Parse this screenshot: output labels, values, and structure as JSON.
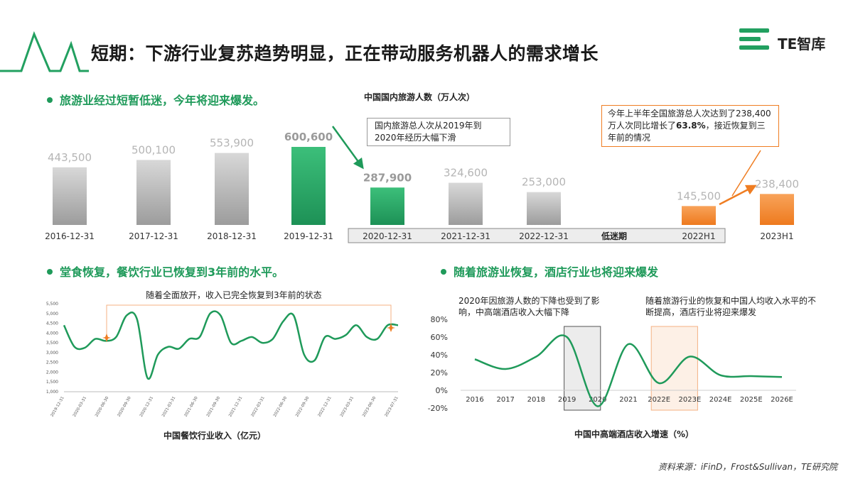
{
  "header": {
    "title": "短期：下游行业复苏趋势明显，正在带动服务机器人的需求增长",
    "logo_text": "TE智库"
  },
  "sections": {
    "tourism": {
      "bullet": "旅游业经过短暂低迷，今年将迎来爆发。"
    },
    "catering": {
      "bullet": "堂食恢复，餐饮行业已恢复到3年前的水平。"
    },
    "hotel": {
      "bullet": "随着旅游业恢复，酒店行业也将迎来爆发"
    }
  },
  "notes": {
    "decline": "国内旅游总人次从2019年到2020年经历大幅下滑",
    "growth_pre": "今年上半年全国旅游总人次达到了238,400万人次同比增长了",
    "growth_pct": "63.8%",
    "growth_post": "，接近恢复到三年前的情况",
    "low_period": "低迷期",
    "catering_annotation": "随着全面放开，收入已完全恢复到3年前的状态",
    "hotel_ann1": "2020年因旅游人数的下降也受到了影响，中高端酒店收入大幅下降",
    "hotel_ann2": "随着旅游行业的恢复和中国人均收入水平的不断提高，酒店行业将迎来爆发"
  },
  "source": "资料来源：iFinD，Frost&Sullivan，TE研究院",
  "colors": {
    "green": "#1f9a5a",
    "orange": "#ef7d22",
    "gray": "#b5b5b5"
  },
  "chart_data": [
    {
      "type": "bar",
      "title": "中国国内旅游人数（万人次）",
      "categories": [
        "2016-12-31",
        "2017-12-31",
        "2018-12-31",
        "2019-12-31",
        "2020-12-31",
        "2021-12-31",
        "2022-12-31",
        "2022H1",
        "2023H1"
      ],
      "values": [
        443500,
        500100,
        553900,
        600600,
        287900,
        324600,
        253000,
        145500,
        238400
      ],
      "value_labels": [
        "443,500",
        "500,100",
        "553,900",
        "600,600",
        "287,900",
        "324,600",
        "253,000",
        "145,500",
        "238,400"
      ],
      "bar_colors": [
        "gray",
        "gray",
        "gray",
        "green",
        "green",
        "gray",
        "gray",
        "orange",
        "orange"
      ],
      "ylim": [
        0,
        600600
      ]
    },
    {
      "type": "line",
      "title": "中国餐饮行业收入（亿元）",
      "yticks": [
        "5,500",
        "5,000",
        "4,500",
        "4,000",
        "3,500",
        "3,000",
        "2,500",
        "2,000",
        "1,500",
        "1,000"
      ],
      "ylim": [
        1000,
        5500
      ],
      "xticks": [
        "2019-12-31",
        "2020-03-31",
        "2020-06-30",
        "2020-09-30",
        "2020-12-31",
        "2021-03-31",
        "2021-06-30",
        "2021-09-30",
        "2021-12-31",
        "2022-03-31",
        "2022-06-30",
        "2022-09-30",
        "2022-12-31",
        "2023-03-31",
        "2023-06-30",
        "2023-07-31"
      ],
      "values": [
        4400,
        3300,
        3250,
        3700,
        3600,
        3800,
        4900,
        4700,
        1700,
        2900,
        3300,
        3200,
        3700,
        3800,
        5000,
        4900,
        3500,
        3600,
        3800,
        3500,
        3700,
        4600,
        4900,
        2900,
        2600,
        3800,
        3700,
        3900,
        4400,
        3800,
        3700,
        4400,
        4400
      ]
    },
    {
      "type": "line",
      "title": "中国中高端酒店收入增速（%）",
      "categories": [
        "2016",
        "2017",
        "2018",
        "2019",
        "2020",
        "2021",
        "2022E",
        "2023E",
        "2024E",
        "2025E",
        "2026E"
      ],
      "values": [
        35,
        24,
        38,
        60,
        -18,
        52,
        8,
        38,
        17,
        16,
        15
      ],
      "yticks": [
        "80%",
        "60%",
        "40%",
        "20%",
        "0%",
        "-20%"
      ],
      "ylim": [
        -20,
        80
      ]
    }
  ]
}
